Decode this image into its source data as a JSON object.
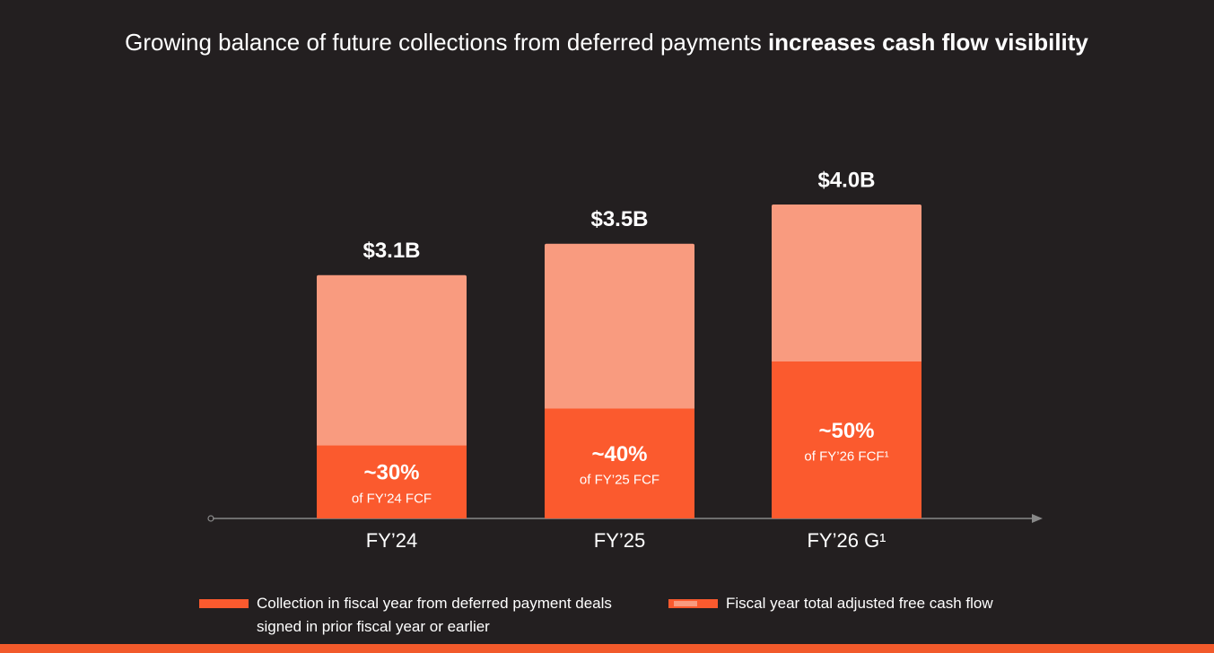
{
  "chart_data": {
    "type": "bar",
    "title": "Growing balance of future collections from deferred payments",
    "title_emphasis": "increases cash flow visibility",
    "categories": [
      "FY’24",
      "FY’25",
      "FY’26 G¹"
    ],
    "series": [
      {
        "name": "Fiscal year total adjusted free cash flow",
        "color": "#f99b7f",
        "values": [
          3.1,
          3.5,
          4.0
        ],
        "value_labels": [
          "$3.1B",
          "$3.5B",
          "$4.0B"
        ]
      },
      {
        "name": "Collection in fiscal year from deferred payment deals signed in prior fiscal year or earlier",
        "color": "#fb5a2e",
        "values": [
          30,
          40,
          50
        ],
        "value_labels": [
          "~30%",
          "~40%",
          "~50%"
        ],
        "sub_labels": [
          "of FY’24 FCF",
          "of FY’25 FCF",
          "of FY’26 FCF¹"
        ]
      }
    ]
  }
}
